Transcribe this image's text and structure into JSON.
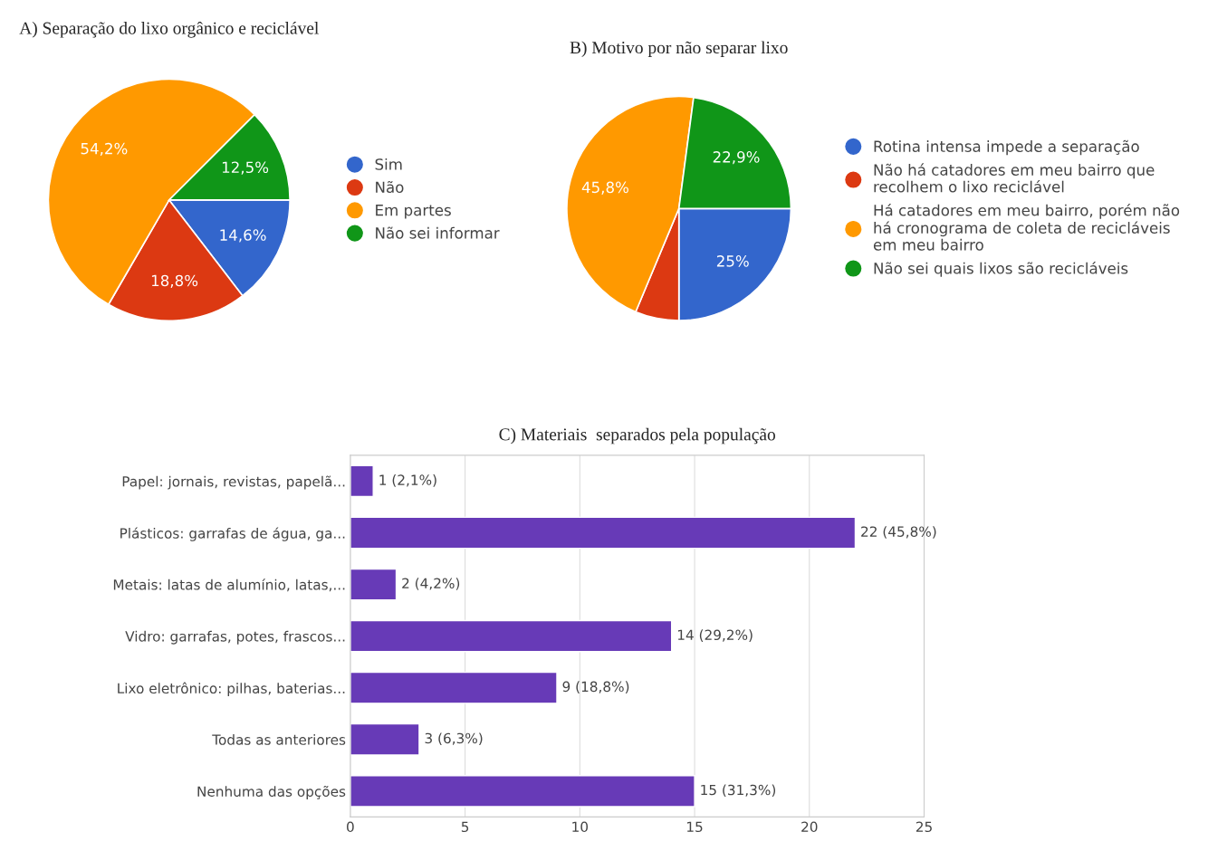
{
  "chart_data": [
    {
      "type": "pie",
      "title": "A) Separação do lixo orgânico e reciclável",
      "categories": [
        "Sim",
        "Não",
        "Em partes",
        "Não sei informar"
      ],
      "values": [
        14.6,
        18.8,
        54.2,
        12.5
      ],
      "colors": [
        "#3366cc",
        "#dc3912",
        "#ff9900",
        "#109618"
      ],
      "value_labels": [
        "14,6%",
        "18,8%",
        "54,2%",
        "12,5%"
      ],
      "legend": "right"
    },
    {
      "type": "pie",
      "title": "B) Motivo por não separar lixo",
      "categories": [
        "Rotina intensa impede a separação",
        "Não há catadores em meu bairro que\nrecolhem o lixo reciclável",
        "Há catadores em meu bairro, porém não\nhá cronograma de coleta de recicláveis\nem meu bairro",
        "Não sei quais lixos são recicláveis"
      ],
      "values": [
        25,
        6.3,
        45.8,
        22.9
      ],
      "colors": [
        "#3366cc",
        "#dc3912",
        "#ff9900",
        "#109618"
      ],
      "value_labels": [
        "25%",
        null,
        "45,8%",
        "22,9%"
      ],
      "legend": "right"
    },
    {
      "type": "bar",
      "title": "C) Materiais  separados pela população",
      "orientation": "horizontal",
      "categories": [
        "Papel: jornais, revistas, papelã...",
        "Plásticos: garrafas de água, ga...",
        "Metais: latas de alumínio, latas,...",
        "Vidro: garrafas, potes, frascos...",
        "Lixo eletrônico: pilhas, baterias...",
        "Todas as anteriores",
        "Nenhuma das opções"
      ],
      "values": [
        1,
        22,
        2,
        14,
        9,
        3,
        15
      ],
      "color": "#673ab7",
      "value_labels": [
        "1 (2,1%)",
        "22 (45,8%)",
        "2 (4,2%)",
        "14 (29,2%)",
        "9 (18,8%)",
        "3 (6,3%)",
        "15 (31,3%)"
      ],
      "xlim": [
        0,
        25
      ],
      "xticks": [
        0,
        5,
        10,
        15,
        20,
        25
      ],
      "grid": "x"
    }
  ]
}
